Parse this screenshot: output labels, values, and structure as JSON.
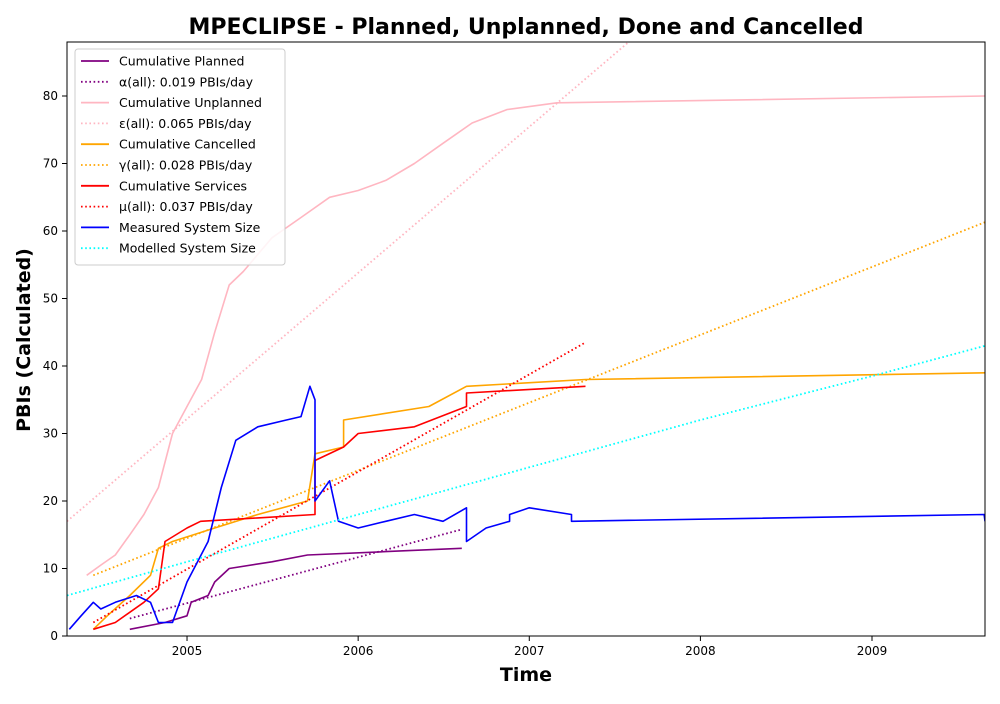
{
  "chart_data": {
    "type": "line",
    "title": "MPECLIPSE - Planned, Unplanned, Done  and Cancelled",
    "xlabel": "Time",
    "ylabel": "PBIs (Calculated)",
    "xlim": [
      "2004-04-20",
      "2009-08-30"
    ],
    "ylim": [
      0,
      88
    ],
    "grid": false,
    "legend_position": "top-left",
    "x_ticks": [
      {
        "date": "2005-01-01",
        "label": "2005"
      },
      {
        "date": "2006-01-01",
        "label": "2006"
      },
      {
        "date": "2007-01-01",
        "label": "2007"
      },
      {
        "date": "2008-01-01",
        "label": "2008"
      },
      {
        "date": "2009-01-01",
        "label": "2009"
      }
    ],
    "y_ticks": [
      0,
      10,
      20,
      30,
      40,
      50,
      60,
      70,
      80
    ],
    "series": [
      {
        "name": "Cumulative Planned",
        "color": "#800080",
        "style": "solid",
        "points": [
          [
            "2004-09-01",
            1
          ],
          [
            "2004-11-15",
            2
          ],
          [
            "2005-01-01",
            3
          ],
          [
            "2005-01-10",
            5
          ],
          [
            "2005-02-15",
            6
          ],
          [
            "2005-03-01",
            8
          ],
          [
            "2005-04-01",
            10
          ],
          [
            "2005-07-01",
            11
          ],
          [
            "2005-09-15",
            12
          ],
          [
            "2006-03-01",
            12.5
          ],
          [
            "2006-08-10",
            13
          ]
        ]
      },
      {
        "name": "α(all): 0.019 PBIs/day",
        "color": "#800080",
        "style": "dotted",
        "points": [
          [
            "2004-09-01",
            2.6
          ],
          [
            "2006-08-10",
            15.8
          ]
        ]
      },
      {
        "name": "Cumulative Unplanned",
        "color": "#ffb6c1",
        "style": "solid",
        "points": [
          [
            "2004-06-01",
            9
          ],
          [
            "2004-07-01",
            10.5
          ],
          [
            "2004-08-01",
            12
          ],
          [
            "2004-09-01",
            15
          ],
          [
            "2004-10-01",
            18
          ],
          [
            "2004-11-01",
            22
          ],
          [
            "2004-12-01",
            30
          ],
          [
            "2005-01-01",
            34
          ],
          [
            "2005-02-01",
            38
          ],
          [
            "2005-03-01",
            45
          ],
          [
            "2005-04-01",
            52
          ],
          [
            "2005-05-01",
            54
          ],
          [
            "2005-07-01",
            59
          ],
          [
            "2005-09-01",
            62
          ],
          [
            "2005-11-01",
            65
          ],
          [
            "2006-01-01",
            66
          ],
          [
            "2006-03-01",
            67.5
          ],
          [
            "2006-05-01",
            70
          ],
          [
            "2006-07-01",
            73
          ],
          [
            "2006-09-01",
            76
          ],
          [
            "2006-11-15",
            78
          ],
          [
            "2007-03-01",
            79
          ],
          [
            "2009-08-30",
            80
          ]
        ]
      },
      {
        "name": "ε(all): 0.065 PBIs/day",
        "color": "#ffb6c1",
        "style": "dotted",
        "points": [
          [
            "2004-04-20",
            17
          ],
          [
            "2007-08-01",
            88
          ]
        ]
      },
      {
        "name": "Cumulative Cancelled",
        "color": "#ffa500",
        "style": "solid",
        "points": [
          [
            "2004-06-15",
            1
          ],
          [
            "2004-07-15",
            3
          ],
          [
            "2004-09-01",
            6
          ],
          [
            "2004-10-15",
            9
          ],
          [
            "2004-11-01",
            13
          ],
          [
            "2004-12-01",
            14
          ],
          [
            "2005-03-01",
            16
          ],
          [
            "2005-06-01",
            18
          ],
          [
            "2005-09-15",
            20
          ],
          [
            "2005-10-01",
            27
          ],
          [
            "2005-12-01",
            28
          ],
          [
            "2005-12-01",
            32
          ],
          [
            "2006-06-01",
            34
          ],
          [
            "2006-08-20",
            37
          ],
          [
            "2007-05-01",
            38
          ],
          [
            "2009-08-30",
            39
          ]
        ]
      },
      {
        "name": "γ(all): 0.028 PBIs/day",
        "color": "#ffa500",
        "style": "dotted",
        "points": [
          [
            "2004-06-15",
            9
          ],
          [
            "2009-08-30",
            61.3
          ]
        ]
      },
      {
        "name": "Cumulative Services",
        "color": "#ff0000",
        "style": "solid",
        "points": [
          [
            "2004-06-15",
            1
          ],
          [
            "2004-08-01",
            2
          ],
          [
            "2004-10-01",
            5
          ],
          [
            "2004-11-01",
            7
          ],
          [
            "2004-11-15",
            14
          ],
          [
            "2005-01-01",
            16
          ],
          [
            "2005-01-30",
            17
          ],
          [
            "2005-06-01",
            17.5
          ],
          [
            "2005-10-01",
            18
          ],
          [
            "2005-10-01",
            26
          ],
          [
            "2005-12-01",
            28
          ],
          [
            "2006-01-01",
            30
          ],
          [
            "2006-05-01",
            31
          ],
          [
            "2006-08-20",
            34
          ],
          [
            "2006-08-20",
            36
          ],
          [
            "2007-05-01",
            37
          ]
        ]
      },
      {
        "name": "μ(all): 0.037 PBIs/day",
        "color": "#ff0000",
        "style": "dotted",
        "points": [
          [
            "2004-06-15",
            2
          ],
          [
            "2007-05-01",
            43.5
          ]
        ]
      },
      {
        "name": "Measured System Size",
        "color": "#0000ff",
        "style": "solid",
        "points": [
          [
            "2004-04-25",
            1
          ],
          [
            "2004-05-20",
            3
          ],
          [
            "2004-06-15",
            5
          ],
          [
            "2004-07-01",
            4
          ],
          [
            "2004-08-01",
            5
          ],
          [
            "2004-09-15",
            6
          ],
          [
            "2004-10-15",
            5
          ],
          [
            "2004-11-01",
            2
          ],
          [
            "2004-12-01",
            2
          ],
          [
            "2005-01-01",
            8
          ],
          [
            "2005-02-15",
            14
          ],
          [
            "2005-03-15",
            22
          ],
          [
            "2005-04-15",
            29
          ],
          [
            "2005-06-01",
            31
          ],
          [
            "2005-08-01",
            32
          ],
          [
            "2005-09-01",
            32.5
          ],
          [
            "2005-09-20",
            37
          ],
          [
            "2005-10-01",
            35
          ],
          [
            "2005-10-01",
            20
          ],
          [
            "2005-11-01",
            23
          ],
          [
            "2005-11-20",
            17
          ],
          [
            "2006-01-01",
            16
          ],
          [
            "2006-03-01",
            17
          ],
          [
            "2006-05-01",
            18
          ],
          [
            "2006-07-01",
            17
          ],
          [
            "2006-08-20",
            19
          ],
          [
            "2006-08-20",
            14
          ],
          [
            "2006-10-01",
            16
          ],
          [
            "2006-11-20",
            17
          ],
          [
            "2006-11-20",
            18
          ],
          [
            "2007-01-01",
            19
          ],
          [
            "2007-04-01",
            18
          ],
          [
            "2007-04-01",
            17
          ],
          [
            "2009-08-28",
            18
          ],
          [
            "2009-08-30",
            17
          ]
        ]
      },
      {
        "name": "Modelled System Size",
        "color": "#00ffff",
        "style": "dotted",
        "points": [
          [
            "2004-04-20",
            6
          ],
          [
            "2005-01-01",
            11
          ],
          [
            "2006-01-01",
            18
          ],
          [
            "2007-01-01",
            25
          ],
          [
            "2008-01-01",
            32
          ],
          [
            "2009-01-01",
            38.5
          ],
          [
            "2009-08-30",
            43
          ]
        ]
      }
    ]
  }
}
